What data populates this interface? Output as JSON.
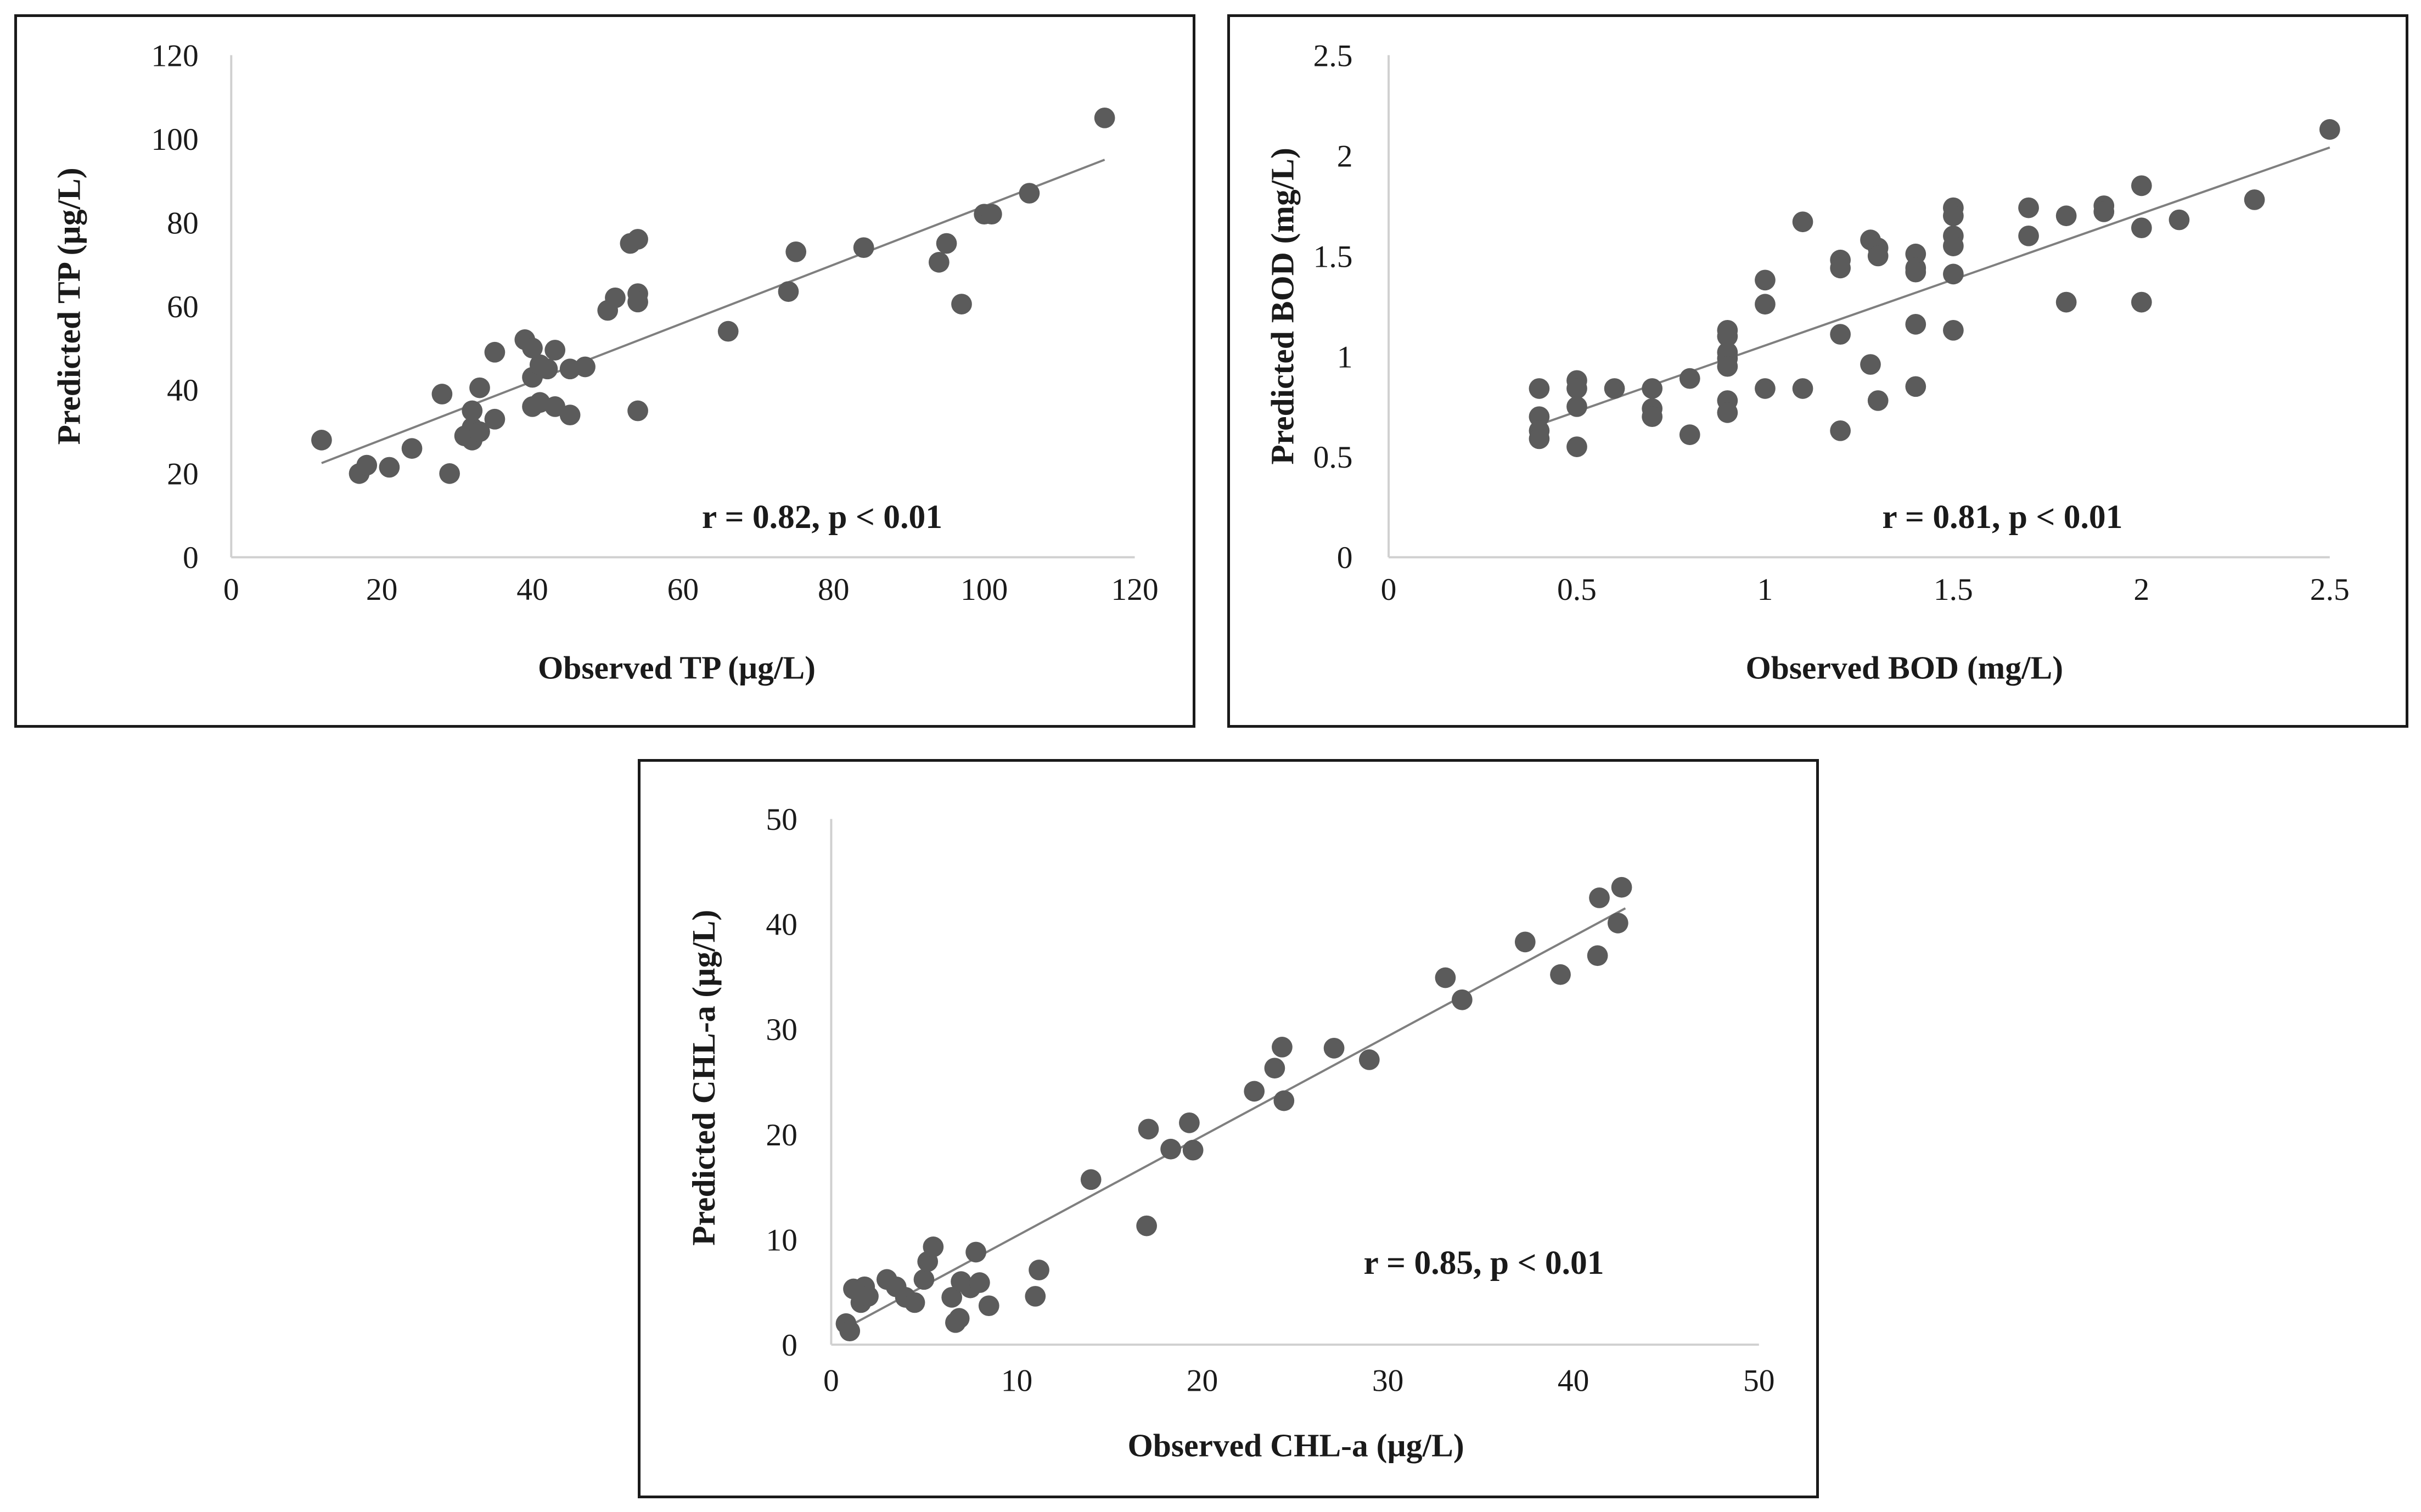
{
  "colors": {
    "point": "#5b5b5b",
    "trend": "#7f7f7f",
    "axis": "#d0d0d0",
    "frame": "#1a1a1a"
  },
  "chart_data": [
    {
      "type": "scatter",
      "id": "tp",
      "title": "",
      "xlabel": "Observed TP (µg/L)",
      "ylabel": "Predicted TP (µg/L)",
      "xlim": [
        0,
        120
      ],
      "ylim": [
        0,
        120
      ],
      "xticks": [
        "0",
        "20",
        "40",
        "60",
        "80",
        "100",
        "120"
      ],
      "yticks": [
        "0",
        "20",
        "40",
        "60",
        "80",
        "100",
        "120"
      ],
      "annotation": "r = 0.82, p < 0.01",
      "trendline": {
        "x": [
          12,
          116
        ],
        "y": [
          22.5,
          95
        ]
      },
      "x": [
        12,
        17,
        18,
        21,
        24,
        28,
        29,
        31,
        32,
        32,
        32,
        33,
        33,
        35,
        35,
        39,
        40,
        40,
        40,
        41,
        41,
        42,
        43,
        43,
        45,
        45,
        47,
        50,
        51,
        53,
        54,
        54,
        54,
        54,
        66,
        74,
        75,
        84,
        94,
        95,
        97,
        100,
        101,
        106,
        116
      ],
      "y": [
        28,
        20,
        22,
        21.5,
        26,
        39,
        20,
        29,
        28,
        31,
        35,
        40.5,
        30,
        49,
        33,
        52,
        50,
        43,
        36,
        46,
        37,
        45,
        36,
        49.5,
        45,
        34,
        45.5,
        59,
        62,
        75,
        76,
        63,
        61,
        35,
        54,
        63.5,
        73,
        74,
        70.5,
        75,
        60.5,
        82,
        82,
        87,
        105
      ]
    },
    {
      "type": "scatter",
      "id": "bod",
      "title": "",
      "xlabel": "Observed BOD (mg/L)",
      "ylabel": "Predicted BOD (mg/L)",
      "xlim": [
        0,
        2.5
      ],
      "ylim": [
        0,
        2.5
      ],
      "xticks": [
        "0",
        "0.5",
        "1",
        "1.5",
        "2",
        "2.5"
      ],
      "yticks": [
        "0",
        "0.5",
        "1",
        "1.5",
        "2",
        "2.5"
      ],
      "annotation": "r = 0.81, p < 0.01",
      "trendline": {
        "x": [
          0.4,
          2.5
        ],
        "y": [
          0.66,
          2.04
        ]
      },
      "x": [
        0.4,
        0.4,
        0.4,
        0.4,
        0.5,
        0.5,
        0.5,
        0.5,
        0.6,
        0.7,
        0.7,
        0.7,
        0.8,
        0.8,
        0.9,
        0.9,
        0.9,
        0.9,
        0.9,
        0.9,
        0.9,
        1.0,
        1.0,
        1.0,
        1.1,
        1.1,
        1.2,
        1.2,
        1.2,
        1.2,
        1.28,
        1.28,
        1.3,
        1.3,
        1.3,
        1.4,
        1.4,
        1.4,
        1.4,
        1.4,
        1.5,
        1.5,
        1.5,
        1.5,
        1.5,
        1.5,
        1.7,
        1.7,
        1.8,
        1.8,
        1.9,
        1.9,
        2.0,
        2.0,
        2.0,
        2.1,
        2.3,
        2.5
      ],
      "y": [
        0.84,
        0.7,
        0.63,
        0.59,
        0.88,
        0.84,
        0.75,
        0.55,
        0.84,
        0.84,
        0.74,
        0.7,
        0.89,
        0.61,
        1.13,
        1.1,
        1.02,
        0.99,
        0.95,
        0.78,
        0.72,
        1.38,
        1.26,
        0.84,
        1.67,
        0.84,
        1.48,
        1.44,
        1.11,
        0.63,
        1.58,
        0.96,
        1.54,
        1.5,
        0.78,
        1.51,
        1.44,
        1.42,
        1.16,
        0.85,
        1.74,
        1.7,
        1.6,
        1.55,
        1.41,
        1.13,
        1.74,
        1.6,
        1.7,
        1.27,
        1.75,
        1.72,
        1.85,
        1.64,
        1.27,
        1.68,
        1.78,
        2.13
      ]
    },
    {
      "type": "scatter",
      "id": "chl",
      "title": "",
      "xlabel": "Observed CHL-a  (µg/L)",
      "ylabel": "Predicted CHL-a  (µg/L)",
      "xlim": [
        0,
        50
      ],
      "ylim": [
        0,
        50
      ],
      "xticks": [
        "0",
        "10",
        "20",
        "30",
        "40",
        "50"
      ],
      "yticks": [
        "0",
        "10",
        "20",
        "30",
        "40",
        "50"
      ],
      "annotation": "r = 0.85, p < 0.01",
      "trendline": {
        "x": [
          0.8,
          42.8
        ],
        "y": [
          1.6,
          41.5
        ]
      },
      "x": [
        0.8,
        1.0,
        1.2,
        1.6,
        1.8,
        2.0,
        3.0,
        3.5,
        4.0,
        4.5,
        5.0,
        5.2,
        5.5,
        6.5,
        6.7,
        6.9,
        7.0,
        7.5,
        7.8,
        8.0,
        8.5,
        11.0,
        11.2,
        14.0,
        17.0,
        17.1,
        18.3,
        19.3,
        19.5,
        22.8,
        23.9,
        24.3,
        24.4,
        27.1,
        29.0,
        33.1,
        34.0,
        37.4,
        39.3,
        41.3,
        41.4,
        42.4,
        42.6
      ],
      "y": [
        2.0,
        1.3,
        5.3,
        4.0,
        5.5,
        4.6,
        6.2,
        5.5,
        4.5,
        4.0,
        6.2,
        7.9,
        9.3,
        4.5,
        2.1,
        2.5,
        6.0,
        5.4,
        8.8,
        5.9,
        3.7,
        4.6,
        7.1,
        15.7,
        11.3,
        20.5,
        18.6,
        21.1,
        18.5,
        24.1,
        26.3,
        28.3,
        23.2,
        28.2,
        27.1,
        34.9,
        32.8,
        38.3,
        35.2,
        37.0,
        42.5,
        40.1,
        43.5
      ]
    }
  ]
}
